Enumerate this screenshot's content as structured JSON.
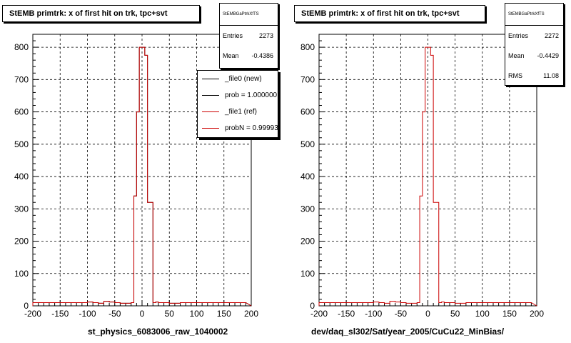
{
  "chart_data": [
    {
      "type": "histogram",
      "title": "StEMB primtrk: x of first hit on trk, tpc+svt",
      "xlabel": "st_physics_6083006_raw_1040002",
      "xlim": [
        -200,
        200
      ],
      "ylim": [
        0,
        840
      ],
      "x_ticks": [
        "-200",
        "-150",
        "-100",
        "-50",
        "0",
        "50",
        "100",
        "150",
        "200"
      ],
      "y_ticks": [
        "0",
        "100",
        "200",
        "300",
        "400",
        "500",
        "600",
        "700",
        "800"
      ],
      "grid": true,
      "bin_edges": [
        -200,
        -190,
        -180,
        -170,
        -160,
        -150,
        -140,
        -130,
        -120,
        -110,
        -100,
        -90,
        -80,
        -70,
        -60,
        -50,
        -40,
        -30,
        -20,
        -15,
        -10,
        -5,
        0,
        5,
        10,
        15,
        20,
        25,
        30,
        40,
        50,
        60,
        70,
        80,
        90,
        100,
        110,
        120,
        130,
        140,
        150,
        160,
        170,
        180,
        190,
        200
      ],
      "series": [
        {
          "name": "_file0 (new)",
          "color": "#000000",
          "values": [
            10,
            10,
            10,
            10,
            10,
            10,
            10,
            10,
            10,
            10,
            12,
            10,
            8,
            14,
            12,
            10,
            8,
            8,
            10,
            340,
            600,
            800,
            800,
            775,
            320,
            320,
            10,
            12,
            10,
            10,
            8,
            8,
            10,
            10,
            10,
            10,
            10,
            10,
            10,
            10,
            10,
            10,
            10,
            10
          ]
        },
        {
          "name": "_file1 (ref)",
          "color": "#cc0000",
          "values": [
            10,
            10,
            10,
            10,
            10,
            10,
            10,
            10,
            10,
            10,
            12,
            10,
            8,
            14,
            12,
            10,
            8,
            8,
            10,
            340,
            600,
            800,
            800,
            775,
            320,
            320,
            10,
            12,
            10,
            10,
            8,
            8,
            10,
            10,
            10,
            10,
            10,
            10,
            10,
            10,
            10,
            10,
            10,
            10
          ]
        }
      ]
    },
    {
      "type": "histogram",
      "title": "StEMB primtrk: x of first hit on trk, tpc+svt",
      "xlabel": "dev/daq_sl302/Sat/year_2005/CuCu22_MinBias/",
      "xlim": [
        -200,
        200
      ],
      "ylim": [
        0,
        840
      ],
      "x_ticks": [
        "-200",
        "-150",
        "-100",
        "-50",
        "0",
        "50",
        "100",
        "150",
        "200"
      ],
      "y_ticks": [
        "0",
        "100",
        "200",
        "300",
        "400",
        "500",
        "600",
        "700",
        "800"
      ],
      "grid": true,
      "bin_edges": [
        -200,
        -190,
        -180,
        -170,
        -160,
        -150,
        -140,
        -130,
        -120,
        -110,
        -100,
        -90,
        -80,
        -70,
        -60,
        -50,
        -40,
        -30,
        -20,
        -15,
        -10,
        -5,
        0,
        5,
        10,
        15,
        20,
        25,
        30,
        40,
        50,
        60,
        70,
        80,
        90,
        100,
        110,
        120,
        130,
        140,
        150,
        160,
        170,
        180,
        190,
        200
      ],
      "series": [
        {
          "color": "#cc0000",
          "values": [
            10,
            10,
            10,
            10,
            10,
            10,
            10,
            10,
            10,
            10,
            12,
            10,
            8,
            14,
            12,
            10,
            8,
            8,
            10,
            340,
            600,
            800,
            800,
            775,
            320,
            320,
            10,
            12,
            10,
            10,
            8,
            8,
            10,
            10,
            10,
            10,
            10,
            10,
            10,
            10,
            10,
            10,
            10,
            10
          ]
        }
      ]
    }
  ],
  "left": {
    "title": "StEMB primtrk: x of first hit on trk, tpc+svt",
    "stats": {
      "name": "StEMBGaPtrkXfTS",
      "entries_label": "Entries",
      "entries": "2273",
      "mean_label": "Mean",
      "mean": "-0.4386"
    },
    "legend": [
      "_file0 (new)",
      "prob = 1.000000",
      "_file1 (ref)",
      "probN = 0.999930"
    ],
    "xtitle": "st_physics_6083006_raw_1040002"
  },
  "right": {
    "title": "StEMB primtrk: x of first hit on trk, tpc+svt",
    "stats": {
      "name": "StEMBGaPtrkXfTS",
      "entries_label": "Entries",
      "entries": "2272",
      "mean_label": "Mean",
      "mean": "-0.4429",
      "rms_label": "RMS",
      "rms": "11.08"
    },
    "xtitle": "dev/daq_sl302/Sat/year_2005/CuCu22_MinBias/"
  },
  "colors": {
    "new": "#000000",
    "ref": "#cc0000",
    "grid": "#000000"
  }
}
